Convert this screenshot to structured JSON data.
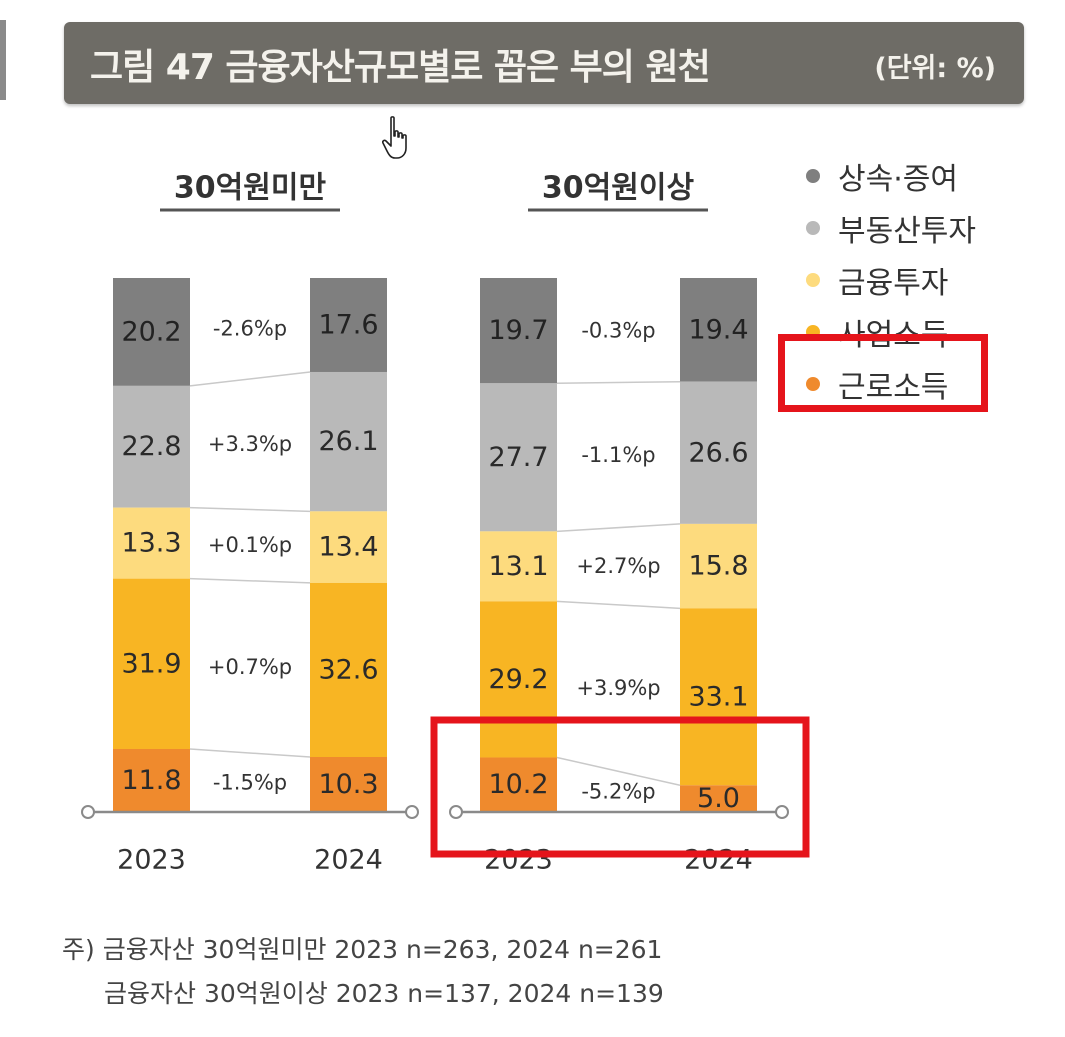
{
  "header": {
    "title": "그림 47   금융자산규모별로 꼽은 부의 원천",
    "unit": "(단위: %)"
  },
  "chart_data": {
    "type": "bar",
    "stacked": true,
    "categories": [
      "상속·증여",
      "부동산투자",
      "금융투자",
      "사업소득",
      "근로소득"
    ],
    "colors": [
      "#7f7f7f",
      "#b9b9b9",
      "#fddb7e",
      "#f8b523",
      "#ef8a2d"
    ],
    "panels": [
      {
        "title": "30억원미만",
        "x": [
          "2023",
          "2024"
        ],
        "series": [
          {
            "name": "상속·증여",
            "values": [
              20.2,
              17.6
            ],
            "labels": [
              "20.2",
              "17.6"
            ],
            "change": "-2.6%p"
          },
          {
            "name": "부동산투자",
            "values": [
              22.8,
              26.1
            ],
            "labels": [
              "22.8",
              "26.1"
            ],
            "change": "+3.3%p"
          },
          {
            "name": "금융투자",
            "values": [
              13.3,
              13.4
            ],
            "labels": [
              "13.3",
              "13.4"
            ],
            "change": "+0.1%p"
          },
          {
            "name": "사업소득",
            "values": [
              31.9,
              32.6
            ],
            "labels": [
              "31.9",
              "32.6"
            ],
            "change": "+0.7%p"
          },
          {
            "name": "근로소득",
            "values": [
              11.8,
              10.3
            ],
            "labels": [
              "11.8",
              "10.3"
            ],
            "change": "-1.5%p"
          }
        ]
      },
      {
        "title": "30억원이상",
        "x": [
          "2023",
          "2024"
        ],
        "series": [
          {
            "name": "상속·증여",
            "values": [
              19.7,
              19.4
            ],
            "labels": [
              "19.7",
              "19.4"
            ],
            "change": "-0.3%p"
          },
          {
            "name": "부동산투자",
            "values": [
              27.7,
              26.6
            ],
            "labels": [
              "27.7",
              "26.6"
            ],
            "change": "-1.1%p"
          },
          {
            "name": "금융투자",
            "values": [
              13.1,
              15.8
            ],
            "labels": [
              "13.1",
              "15.8"
            ],
            "change": "+2.7%p"
          },
          {
            "name": "사업소득",
            "values": [
              29.2,
              33.1
            ],
            "labels": [
              "29.2",
              "33.1"
            ],
            "change": "+3.9%p"
          },
          {
            "name": "근로소득",
            "values": [
              10.2,
              5.0
            ],
            "labels": [
              "10.2",
              "5.0"
            ],
            "change": "-5.2%p"
          }
        ]
      }
    ],
    "legend": [
      "상속·증여",
      "부동산투자",
      "금융투자",
      "사업소득",
      "근로소득"
    ],
    "legend_position": "top-right",
    "highlight_color": "#e5141b"
  },
  "notes": [
    "주) 금융자산 30억원미만 2023 n=263, 2024 n=261",
    "금융자산 30억원이상 2023 n=137, 2024 n=139"
  ]
}
